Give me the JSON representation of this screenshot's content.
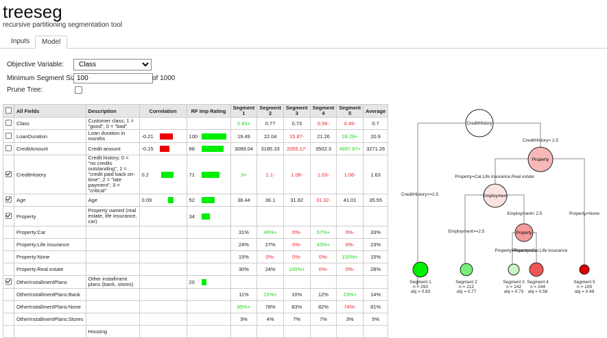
{
  "app": {
    "title": "treeseg",
    "subtitle": "recursive partitioning segmentation tool"
  },
  "tabs": [
    {
      "label": "Inputs"
    },
    {
      "label": "Model"
    }
  ],
  "form": {
    "objective_label": "Objective Variable:",
    "objective_value": "Class",
    "minseg_label": "Minimum Segment Size:",
    "minseg_value": "100",
    "minseg_of": "of 1000",
    "prune_label": "Prune Tree:"
  },
  "table": {
    "headers": [
      "All Fields",
      "Description",
      "Correlation",
      "RF Imp Rating",
      "Segment 1",
      "Segment 2",
      "Segment 3",
      "Segment 4",
      "Segment 5",
      "Average"
    ],
    "rows": [
      {
        "checked": false,
        "field": "Class",
        "desc": "Customer class; 1 = \"good\", 0 = \"bad\"",
        "corr": "",
        "corr_bar": 0,
        "rf": "",
        "rf_bar": 0,
        "segs": [
          {
            "v": "0.83+",
            "c": "g"
          },
          {
            "v": "0.77",
            "c": ""
          },
          {
            "v": "0.73",
            "c": ""
          },
          {
            "v": "0.56-",
            "c": "r"
          },
          {
            "v": "0.49-",
            "c": "r"
          }
        ],
        "avg": "0.7"
      },
      {
        "checked": false,
        "field": "LoanDuration",
        "desc": "Loan duration in months",
        "corr": "-0.21",
        "corr_bar": 0.21,
        "rf": "100",
        "rf_bar": 1.0,
        "segs": [
          {
            "v": "19.49",
            "c": ""
          },
          {
            "v": "22.04",
            "c": ""
          },
          {
            "v": "15.87-",
            "c": "r"
          },
          {
            "v": "21.26",
            "c": ""
          },
          {
            "v": "28.28+",
            "c": "g"
          }
        ],
        "avg": "20.9"
      },
      {
        "checked": false,
        "field": "CreditAmount",
        "desc": "Credit amount",
        "corr": "-0.15",
        "corr_bar": 0.15,
        "rf": "88",
        "rf_bar": 0.88,
        "segs": [
          {
            "v": "3089.04",
            "c": ""
          },
          {
            "v": "3185.33",
            "c": ""
          },
          {
            "v": "2055.17-",
            "c": "r"
          },
          {
            "v": "3502.3",
            "c": ""
          },
          {
            "v": "4997.97+",
            "c": "g"
          }
        ],
        "avg": "3271.26"
      },
      {
        "checked": true,
        "field": "CreditHistory",
        "desc": "Credit history; 0 = \"no credits outstanding\", 1 = \"credit paid back on-time\", 2 = \"late payment\", 3 = \"critical\"",
        "corr": "0.2",
        "corr_bar": 0.2,
        "rf": "71",
        "rf_bar": 0.71,
        "segs": [
          {
            "v": "3+",
            "c": "g"
          },
          {
            "v": "1.1-",
            "c": "r"
          },
          {
            "v": "1.08-",
            "c": "r"
          },
          {
            "v": "1.03-",
            "c": "r"
          },
          {
            "v": "1.06-",
            "c": "r"
          }
        ],
        "avg": "1.63"
      },
      {
        "checked": true,
        "field": "Age",
        "desc": "Age",
        "corr": "0.09",
        "corr_bar": 0.09,
        "rf": "52",
        "rf_bar": 0.52,
        "segs": [
          {
            "v": "38.44",
            "c": ""
          },
          {
            "v": "36.1",
            "c": ""
          },
          {
            "v": "31.82",
            "c": ""
          },
          {
            "v": "31.32-",
            "c": "r"
          },
          {
            "v": "41.01",
            "c": ""
          }
        ],
        "avg": "35.55"
      },
      {
        "checked": true,
        "field": "Property",
        "desc": "Property owned (real estate, life insurance, car)",
        "corr": "",
        "corr_bar": 0,
        "rf": "34",
        "rf_bar": 0.34,
        "segs": [
          {
            "v": "",
            "c": ""
          },
          {
            "v": "",
            "c": ""
          },
          {
            "v": "",
            "c": ""
          },
          {
            "v": "",
            "c": ""
          },
          {
            "v": "",
            "c": ""
          }
        ],
        "avg": ""
      },
      {
        "checked": null,
        "field": "Property:Car",
        "desc": "",
        "corr": "",
        "corr_bar": 0,
        "rf": "",
        "rf_bar": 0,
        "segs": [
          {
            "v": "31%",
            "c": ""
          },
          {
            "v": "49%+",
            "c": "g"
          },
          {
            "v": "0%-",
            "c": "r"
          },
          {
            "v": "57%+",
            "c": "g"
          },
          {
            "v": "0%-",
            "c": "r"
          }
        ],
        "avg": "33%"
      },
      {
        "checked": null,
        "field": "Property:Life insurance",
        "desc": "",
        "corr": "",
        "corr_bar": 0,
        "rf": "",
        "rf_bar": 0,
        "segs": [
          {
            "v": "24%",
            "c": ""
          },
          {
            "v": "27%",
            "c": ""
          },
          {
            "v": "0%-",
            "c": "r"
          },
          {
            "v": "43%+",
            "c": "g"
          },
          {
            "v": "0%-",
            "c": "r"
          }
        ],
        "avg": "23%"
      },
      {
        "checked": null,
        "field": "Property:None",
        "desc": "",
        "corr": "",
        "corr_bar": 0,
        "rf": "",
        "rf_bar": 0,
        "segs": [
          {
            "v": "15%",
            "c": ""
          },
          {
            "v": "0%-",
            "c": "r"
          },
          {
            "v": "0%-",
            "c": "r"
          },
          {
            "v": "0%-",
            "c": "r"
          },
          {
            "v": "100%+",
            "c": "g"
          }
        ],
        "avg": "15%"
      },
      {
        "checked": null,
        "field": "Property:Real estate",
        "desc": "",
        "corr": "",
        "corr_bar": 0,
        "rf": "",
        "rf_bar": 0,
        "segs": [
          {
            "v": "30%",
            "c": ""
          },
          {
            "v": "24%",
            "c": ""
          },
          {
            "v": "100%+",
            "c": "g"
          },
          {
            "v": "0%-",
            "c": "r"
          },
          {
            "v": "0%-",
            "c": "r"
          }
        ],
        "avg": "28%"
      },
      {
        "checked": true,
        "field": "OtherInstallmentPlans",
        "desc": "Other installment plans (bank, stores)",
        "corr": "",
        "corr_bar": 0,
        "rf": "20",
        "rf_bar": 0.2,
        "segs": [
          {
            "v": "",
            "c": ""
          },
          {
            "v": "",
            "c": ""
          },
          {
            "v": "",
            "c": ""
          },
          {
            "v": "",
            "c": ""
          },
          {
            "v": "",
            "c": ""
          }
        ],
        "avg": ""
      },
      {
        "checked": null,
        "field": "OtherInstallmentPlans:Bank",
        "desc": "",
        "corr": "",
        "corr_bar": 0,
        "rf": "",
        "rf_bar": 0,
        "segs": [
          {
            "v": "11%",
            "c": ""
          },
          {
            "v": "15%+",
            "c": "g"
          },
          {
            "v": "10%",
            "c": ""
          },
          {
            "v": "12%",
            "c": ""
          },
          {
            "v": "23%+",
            "c": "g"
          }
        ],
        "avg": "14%"
      },
      {
        "checked": null,
        "field": "OtherInstallmentPlans:None",
        "desc": "",
        "corr": "",
        "corr_bar": 0,
        "rf": "",
        "rf_bar": 0,
        "segs": [
          {
            "v": "85%+",
            "c": "g"
          },
          {
            "v": "78%",
            "c": ""
          },
          {
            "v": "83%",
            "c": ""
          },
          {
            "v": "82%",
            "c": ""
          },
          {
            "v": "74%-",
            "c": "r"
          }
        ],
        "avg": "81%"
      },
      {
        "checked": null,
        "field": "OtherInstallmentPlans:Stores",
        "desc": "",
        "corr": "",
        "corr_bar": 0,
        "rf": "",
        "rf_bar": 0,
        "segs": [
          {
            "v": "3%",
            "c": ""
          },
          {
            "v": "4%",
            "c": ""
          },
          {
            "v": "7%",
            "c": ""
          },
          {
            "v": "7%",
            "c": ""
          },
          {
            "v": "3%",
            "c": ""
          }
        ],
        "avg": "5%"
      },
      {
        "checked": null,
        "field": "",
        "desc": "Housing",
        "corr": "",
        "corr_bar": 0,
        "rf": "",
        "rf_bar": 0,
        "segs": [
          {
            "v": "",
            "c": ""
          },
          {
            "v": "",
            "c": ""
          },
          {
            "v": "",
            "c": ""
          },
          {
            "v": "",
            "c": ""
          },
          {
            "v": "",
            "c": ""
          }
        ],
        "avg": ""
      }
    ]
  },
  "tree": {
    "nodes": [
      {
        "id": "root",
        "label": "CreditHistory",
        "fill": "#ffffff"
      },
      {
        "id": "prop1",
        "label": "Property",
        "fill": "#f7b8b8"
      },
      {
        "id": "emp",
        "label": "Employment",
        "fill": "#fbe3e3"
      },
      {
        "id": "prop2",
        "label": "Property",
        "fill": "#f49a9a"
      }
    ],
    "edge_labels": [
      "CreditHistory< 2.5",
      "CreditHistory>=2.5",
      "Property=Car,Life insurance,Real estate",
      "Property=None",
      "Employment< 2.5",
      "Employment>=2.5",
      "Property=Real estate",
      "Property=Car,Life insurance"
    ],
    "leaves": [
      {
        "name": "Segment 1",
        "n": "n = 293",
        "obj": "obj = 0.83",
        "fill": "#00ee00"
      },
      {
        "name": "Segment 2",
        "n": "n = 212",
        "obj": "obj = 0.77",
        "fill": "#77ee77"
      },
      {
        "name": "Segment 3",
        "n": "n = 142",
        "obj": "obj = 0.73",
        "fill": "#c6f5c6"
      },
      {
        "name": "Segment 4",
        "n": "n = 244",
        "obj": "obj = 0.56",
        "fill": "#ee5555"
      },
      {
        "name": "Segment 5",
        "n": "n = 109",
        "obj": "obj = 0.49",
        "fill": "#dd0000"
      }
    ]
  }
}
